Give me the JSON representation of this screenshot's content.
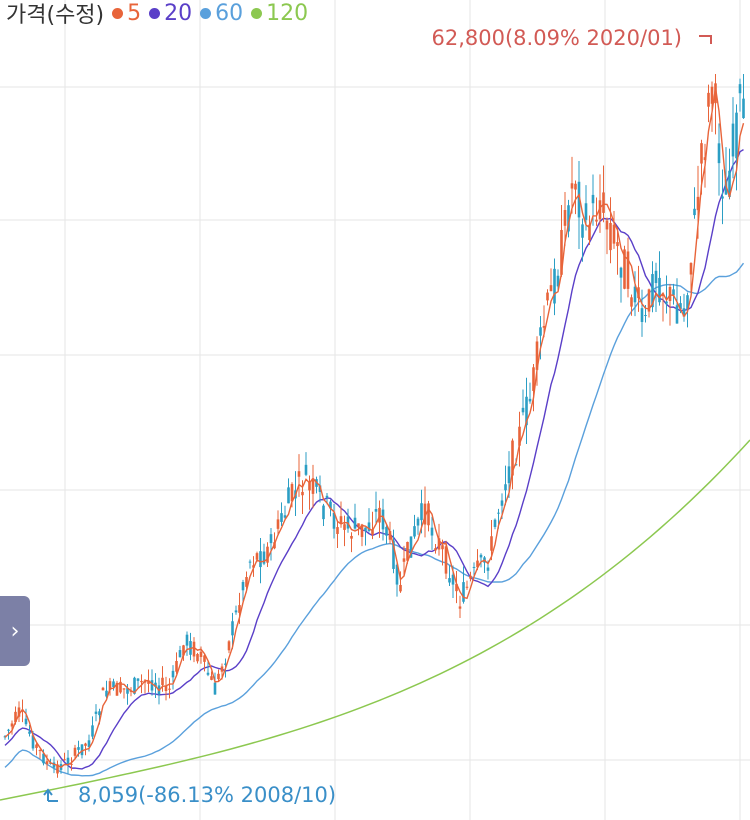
{
  "legend": {
    "title": "가격(수정)",
    "items": [
      {
        "label": "5",
        "color": "#e8643a"
      },
      {
        "label": "20",
        "color": "#5a3fc8"
      },
      {
        "label": "60",
        "color": "#5aa0dc"
      },
      {
        "label": "120",
        "color": "#8cc850"
      }
    ]
  },
  "annotations": {
    "high": "62,800(8.09% 2020/01)",
    "low": "8,059(-86.13% 2008/10)"
  },
  "expand_button": {
    "icon": "chevron-right-icon",
    "glyph": "›"
  },
  "colors": {
    "up": "#e8643a",
    "down": "#2b9ec4",
    "grid": "#e6e6e6"
  },
  "chart_data": {
    "type": "candlestick",
    "x_range": [
      "2008/07",
      "2020/04"
    ],
    "high_point": {
      "date": "2020/01",
      "value": 62800
    },
    "low_point": {
      "date": "2008/10",
      "value": 8059
    },
    "moving_averages": [
      5,
      20,
      60,
      120
    ],
    "grid": true
  }
}
